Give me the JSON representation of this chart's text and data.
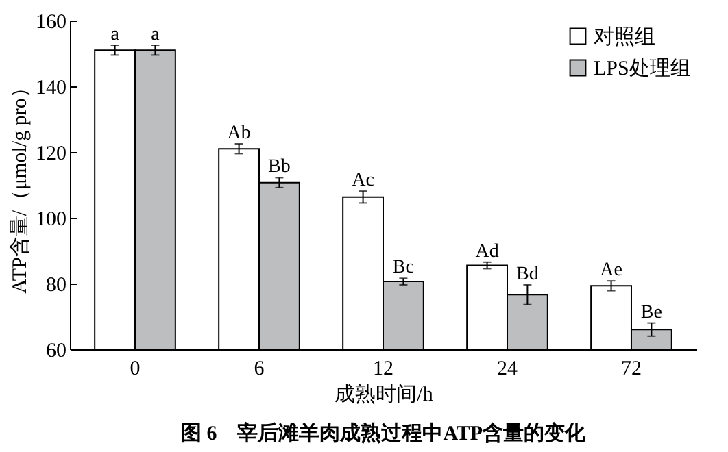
{
  "chart_data": {
    "type": "bar",
    "title": "图 6　宰后滩羊肉成熟过程中ATP含量的变化",
    "xlabel": "成熟时间/h",
    "ylabel": "ATP含量/（μmol/g pro）",
    "categories": [
      "0",
      "6",
      "12",
      "24",
      "72"
    ],
    "series": [
      {
        "name": "对照组",
        "color": "#ffffff",
        "values": [
          151,
          121,
          106.3,
          85.5,
          79.3
        ],
        "errors": [
          1.5,
          1.5,
          1.8,
          1,
          1.5
        ]
      },
      {
        "name": "LPS处理组",
        "color": "#bcbec0",
        "values": [
          151,
          110.7,
          80.6,
          76.6,
          66
        ],
        "errors": [
          1.5,
          1.5,
          1,
          3,
          2
        ]
      }
    ],
    "ylim": [
      60,
      160
    ],
    "yticks": [
      60,
      80,
      100,
      120,
      140,
      160
    ],
    "grid": false,
    "legend": "top right",
    "annotations": [
      {
        "text": "a",
        "x": "0",
        "y": 151
      },
      {
        "text": "a",
        "x": "0",
        "y": 151
      },
      {
        "text": "Ab",
        "x": "6",
        "y": 121
      },
      {
        "text": "Bb",
        "x": "6",
        "y": 110.7
      },
      {
        "text": "Ac",
        "x": "12",
        "y": 106.3
      },
      {
        "text": "Bc",
        "x": "12",
        "y": 80.6
      },
      {
        "text": "Ad",
        "x": "24",
        "y": 85.5
      },
      {
        "text": "Bd",
        "x": "24",
        "y": 76.6
      },
      {
        "text": "Ae",
        "x": "72",
        "y": 79.3
      },
      {
        "text": "Be",
        "x": "72",
        "y": 66
      }
    ]
  }
}
